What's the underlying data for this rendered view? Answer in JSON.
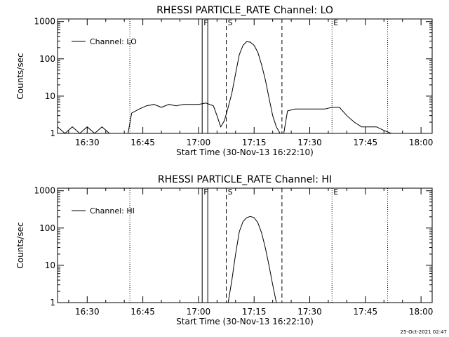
{
  "footer": {
    "timestamp": "25-Oct-2021 02:47"
  },
  "chart_data": [
    {
      "type": "line",
      "title": "RHESSI PARTICLE_RATE Channel: LO",
      "xlabel": "Start Time (30-Nov-13 16:22:10)",
      "ylabel": "Counts/sec",
      "yscale": "log",
      "ylim": [
        1,
        1000
      ],
      "xlim": [
        "16:22",
        "18:03"
      ],
      "xticks": [
        "16:30",
        "16:45",
        "17:00",
        "17:15",
        "17:30",
        "17:45",
        "18:00"
      ],
      "yticks": [
        "1",
        "10",
        "100",
        "1000"
      ],
      "legend": {
        "position": "top-left",
        "label": "Channel: LO"
      },
      "markers": [
        {
          "time": "16:41:30",
          "style": "dotted",
          "label": ""
        },
        {
          "time": "17:01:00",
          "style": "solid",
          "label": "F"
        },
        {
          "time": "17:02:30",
          "style": "solid",
          "label": ""
        },
        {
          "time": "17:07:30",
          "style": "dashed",
          "label": "S"
        },
        {
          "time": "17:22:30",
          "style": "dashed",
          "label": ""
        },
        {
          "time": "17:36:00",
          "style": "dotted",
          "label": "E"
        },
        {
          "time": "17:51:00",
          "style": "dotted",
          "label": ""
        }
      ],
      "series": [
        {
          "name": "Channel: LO",
          "x": [
            "16:22",
            "16:24",
            "16:26",
            "16:28",
            "16:30",
            "16:32",
            "16:34",
            "16:36",
            "16:38",
            "16:40",
            "16:41",
            "16:42",
            "16:44",
            "16:46",
            "16:48",
            "16:50",
            "16:52",
            "16:54",
            "16:56",
            "16:58",
            "17:00",
            "17:02",
            "17:04",
            "17:05",
            "17:06",
            "17:07",
            "17:08",
            "17:09",
            "17:10",
            "17:11",
            "17:12",
            "17:13",
            "17:14",
            "17:15",
            "17:16",
            "17:17",
            "17:18",
            "17:19",
            "17:20",
            "17:21",
            "17:22",
            "17:23",
            "17:24",
            "17:26",
            "17:28",
            "17:30",
            "17:32",
            "17:34",
            "17:36",
            "17:38",
            "17:40",
            "17:42",
            "17:44",
            "17:46",
            "17:48",
            "17:50",
            "17:52"
          ],
          "values": [
            1.5,
            1,
            1.5,
            1,
            1.5,
            1,
            1.5,
            1,
            1,
            1,
            1,
            3.5,
            4.5,
            5.5,
            6,
            5,
            6,
            5.5,
            6,
            6,
            6,
            6.5,
            5.5,
            3,
            1.5,
            2.2,
            5,
            12,
            40,
            130,
            230,
            290,
            280,
            230,
            150,
            70,
            28,
            9,
            3,
            1.5,
            1,
            1,
            4,
            4.5,
            4.5,
            4.5,
            4.5,
            4.5,
            5,
            5,
            3,
            2,
            1.5,
            1.5,
            1.5,
            1.2,
            1
          ]
        }
      ]
    },
    {
      "type": "line",
      "title": "RHESSI PARTICLE_RATE Channel: HI",
      "xlabel": "Start Time (30-Nov-13 16:22:10)",
      "ylabel": "Counts/sec",
      "yscale": "log",
      "ylim": [
        1,
        1000
      ],
      "xlim": [
        "16:22",
        "18:03"
      ],
      "xticks": [
        "16:30",
        "16:45",
        "17:00",
        "17:15",
        "17:30",
        "17:45",
        "18:00"
      ],
      "yticks": [
        "1",
        "10",
        "100",
        "1000"
      ],
      "legend": {
        "position": "top-left",
        "label": "Channel: HI"
      },
      "markers": [
        {
          "time": "16:41:30",
          "style": "dotted",
          "label": ""
        },
        {
          "time": "17:01:00",
          "style": "solid",
          "label": "F"
        },
        {
          "time": "17:02:30",
          "style": "solid",
          "label": ""
        },
        {
          "time": "17:07:30",
          "style": "dashed",
          "label": "S"
        },
        {
          "time": "17:22:30",
          "style": "dashed",
          "label": ""
        },
        {
          "time": "17:36:00",
          "style": "dotted",
          "label": "E"
        },
        {
          "time": "17:51:00",
          "style": "dotted",
          "label": ""
        }
      ],
      "series": [
        {
          "name": "Channel: HI",
          "x": [
            "17:08",
            "17:09",
            "17:10",
            "17:11",
            "17:12",
            "17:13",
            "17:14",
            "17:15",
            "17:16",
            "17:17",
            "17:18",
            "17:19",
            "17:20",
            "17:21"
          ],
          "values": [
            1,
            4,
            20,
            80,
            150,
            190,
            205,
            190,
            140,
            75,
            30,
            10,
            3,
            1
          ]
        }
      ]
    }
  ]
}
